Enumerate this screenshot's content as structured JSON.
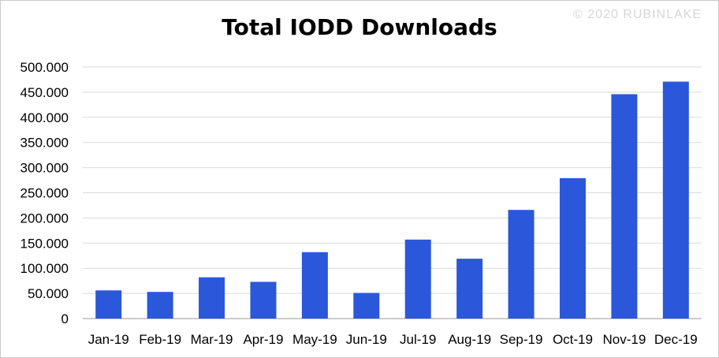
{
  "watermark": "© 2020 RUBINLAKE",
  "colors": {
    "bar": "#2b57da",
    "grid": "#d9d9d9"
  },
  "chart_data": {
    "type": "bar",
    "title": "Total IODD Downloads",
    "xlabel": "",
    "ylabel": "",
    "categories": [
      "Jan-19",
      "Feb-19",
      "Mar-19",
      "Apr-19",
      "May-19",
      "Jun-19",
      "Jul-19",
      "Aug-19",
      "Sep-19",
      "Oct-19",
      "Nov-19",
      "Dec-19"
    ],
    "values": [
      56000,
      53000,
      82000,
      73000,
      132000,
      51000,
      157000,
      119000,
      216000,
      279000,
      446000,
      471000
    ],
    "ylim": [
      0,
      500000
    ],
    "yticks": [
      0,
      50000,
      100000,
      150000,
      200000,
      250000,
      300000,
      350000,
      400000,
      450000,
      500000
    ],
    "ytick_labels": [
      "0",
      "50.000",
      "100.000",
      "150.000",
      "200.000",
      "250.000",
      "300.000",
      "350.000",
      "400.000",
      "450.000",
      "500.000"
    ],
    "grid": true,
    "legend": "none"
  }
}
